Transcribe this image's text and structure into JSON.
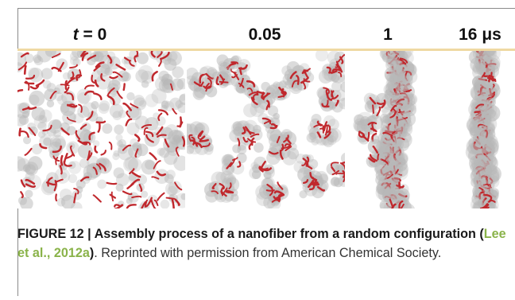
{
  "figure": {
    "time_labels": {
      "t_var": "t",
      "t0_rest": " = 0",
      "t1": "0.05",
      "t2": "1",
      "t3": "16 μs"
    },
    "panels": [
      {
        "time": "t = 0",
        "pattern": "random-dispersed"
      },
      {
        "time": "0.05",
        "pattern": "small-clusters"
      },
      {
        "time": "1",
        "pattern": "branched-fiber"
      },
      {
        "time": "16 μs",
        "pattern": "straight-fiber"
      }
    ],
    "colors": {
      "molecule": "#c0282d",
      "cloud": "#b8b8b8",
      "separator": "#efd9a2"
    }
  },
  "caption": {
    "label": "FIGURE 12 | Assembly process of a nanofiber from a random configuration (",
    "citation": "Lee et al., 2012a",
    "label_end": ")",
    "text": ". Reprinted with permission from American Chemical Society."
  }
}
